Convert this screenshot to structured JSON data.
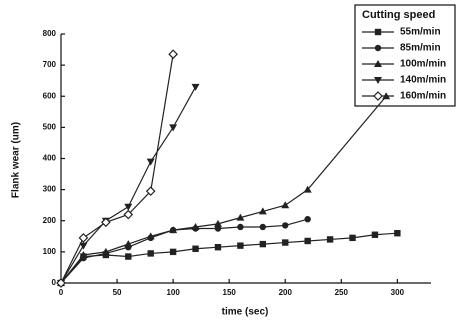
{
  "chart_data": {
    "type": "line",
    "xlabel": "time (sec)",
    "ylabel": "Flank wear (um)",
    "legend_title": "Cutting speed",
    "legend_position": "upper right",
    "xlim": [
      0,
      330
    ],
    "xticks": [
      0,
      50,
      100,
      150,
      200,
      250,
      300
    ],
    "ylim": [
      0,
      800
    ],
    "yticks": [
      0,
      100,
      200,
      300,
      400,
      500,
      600,
      700,
      800
    ],
    "series": [
      {
        "name": "55m/min",
        "color": "#222222",
        "marker": "square",
        "x": [
          0,
          20,
          40,
          60,
          80,
          100,
          120,
          140,
          160,
          180,
          200,
          220,
          240,
          260,
          280,
          300
        ],
        "values": [
          0,
          85,
          90,
          85,
          95,
          100,
          110,
          115,
          120,
          125,
          130,
          135,
          140,
          145,
          155,
          160
        ]
      },
      {
        "name": "85m/min",
        "color": "#222222",
        "marker": "circle",
        "x": [
          0,
          20,
          40,
          60,
          80,
          100,
          120,
          140,
          160,
          180,
          200,
          220
        ],
        "values": [
          0,
          80,
          95,
          115,
          145,
          170,
          175,
          175,
          180,
          180,
          185,
          205
        ]
      },
      {
        "name": "100m/min",
        "color": "#222222",
        "marker": "triangle-up",
        "x": [
          0,
          20,
          40,
          60,
          80,
          100,
          120,
          140,
          160,
          180,
          200,
          220,
          290
        ],
        "values": [
          0,
          90,
          100,
          125,
          150,
          170,
          180,
          190,
          210,
          230,
          250,
          300,
          600
        ]
      },
      {
        "name": "140m/min",
        "color": "#222222",
        "marker": "triangle-down",
        "x": [
          0,
          20,
          40,
          60,
          80,
          100,
          120
        ],
        "values": [
          0,
          120,
          200,
          245,
          390,
          500,
          630
        ]
      },
      {
        "name": "160m/min",
        "color": "#222222",
        "marker": "diamond-open",
        "x": [
          0,
          20,
          40,
          60,
          80,
          100
        ],
        "values": [
          0,
          145,
          195,
          220,
          295,
          735
        ]
      }
    ]
  }
}
